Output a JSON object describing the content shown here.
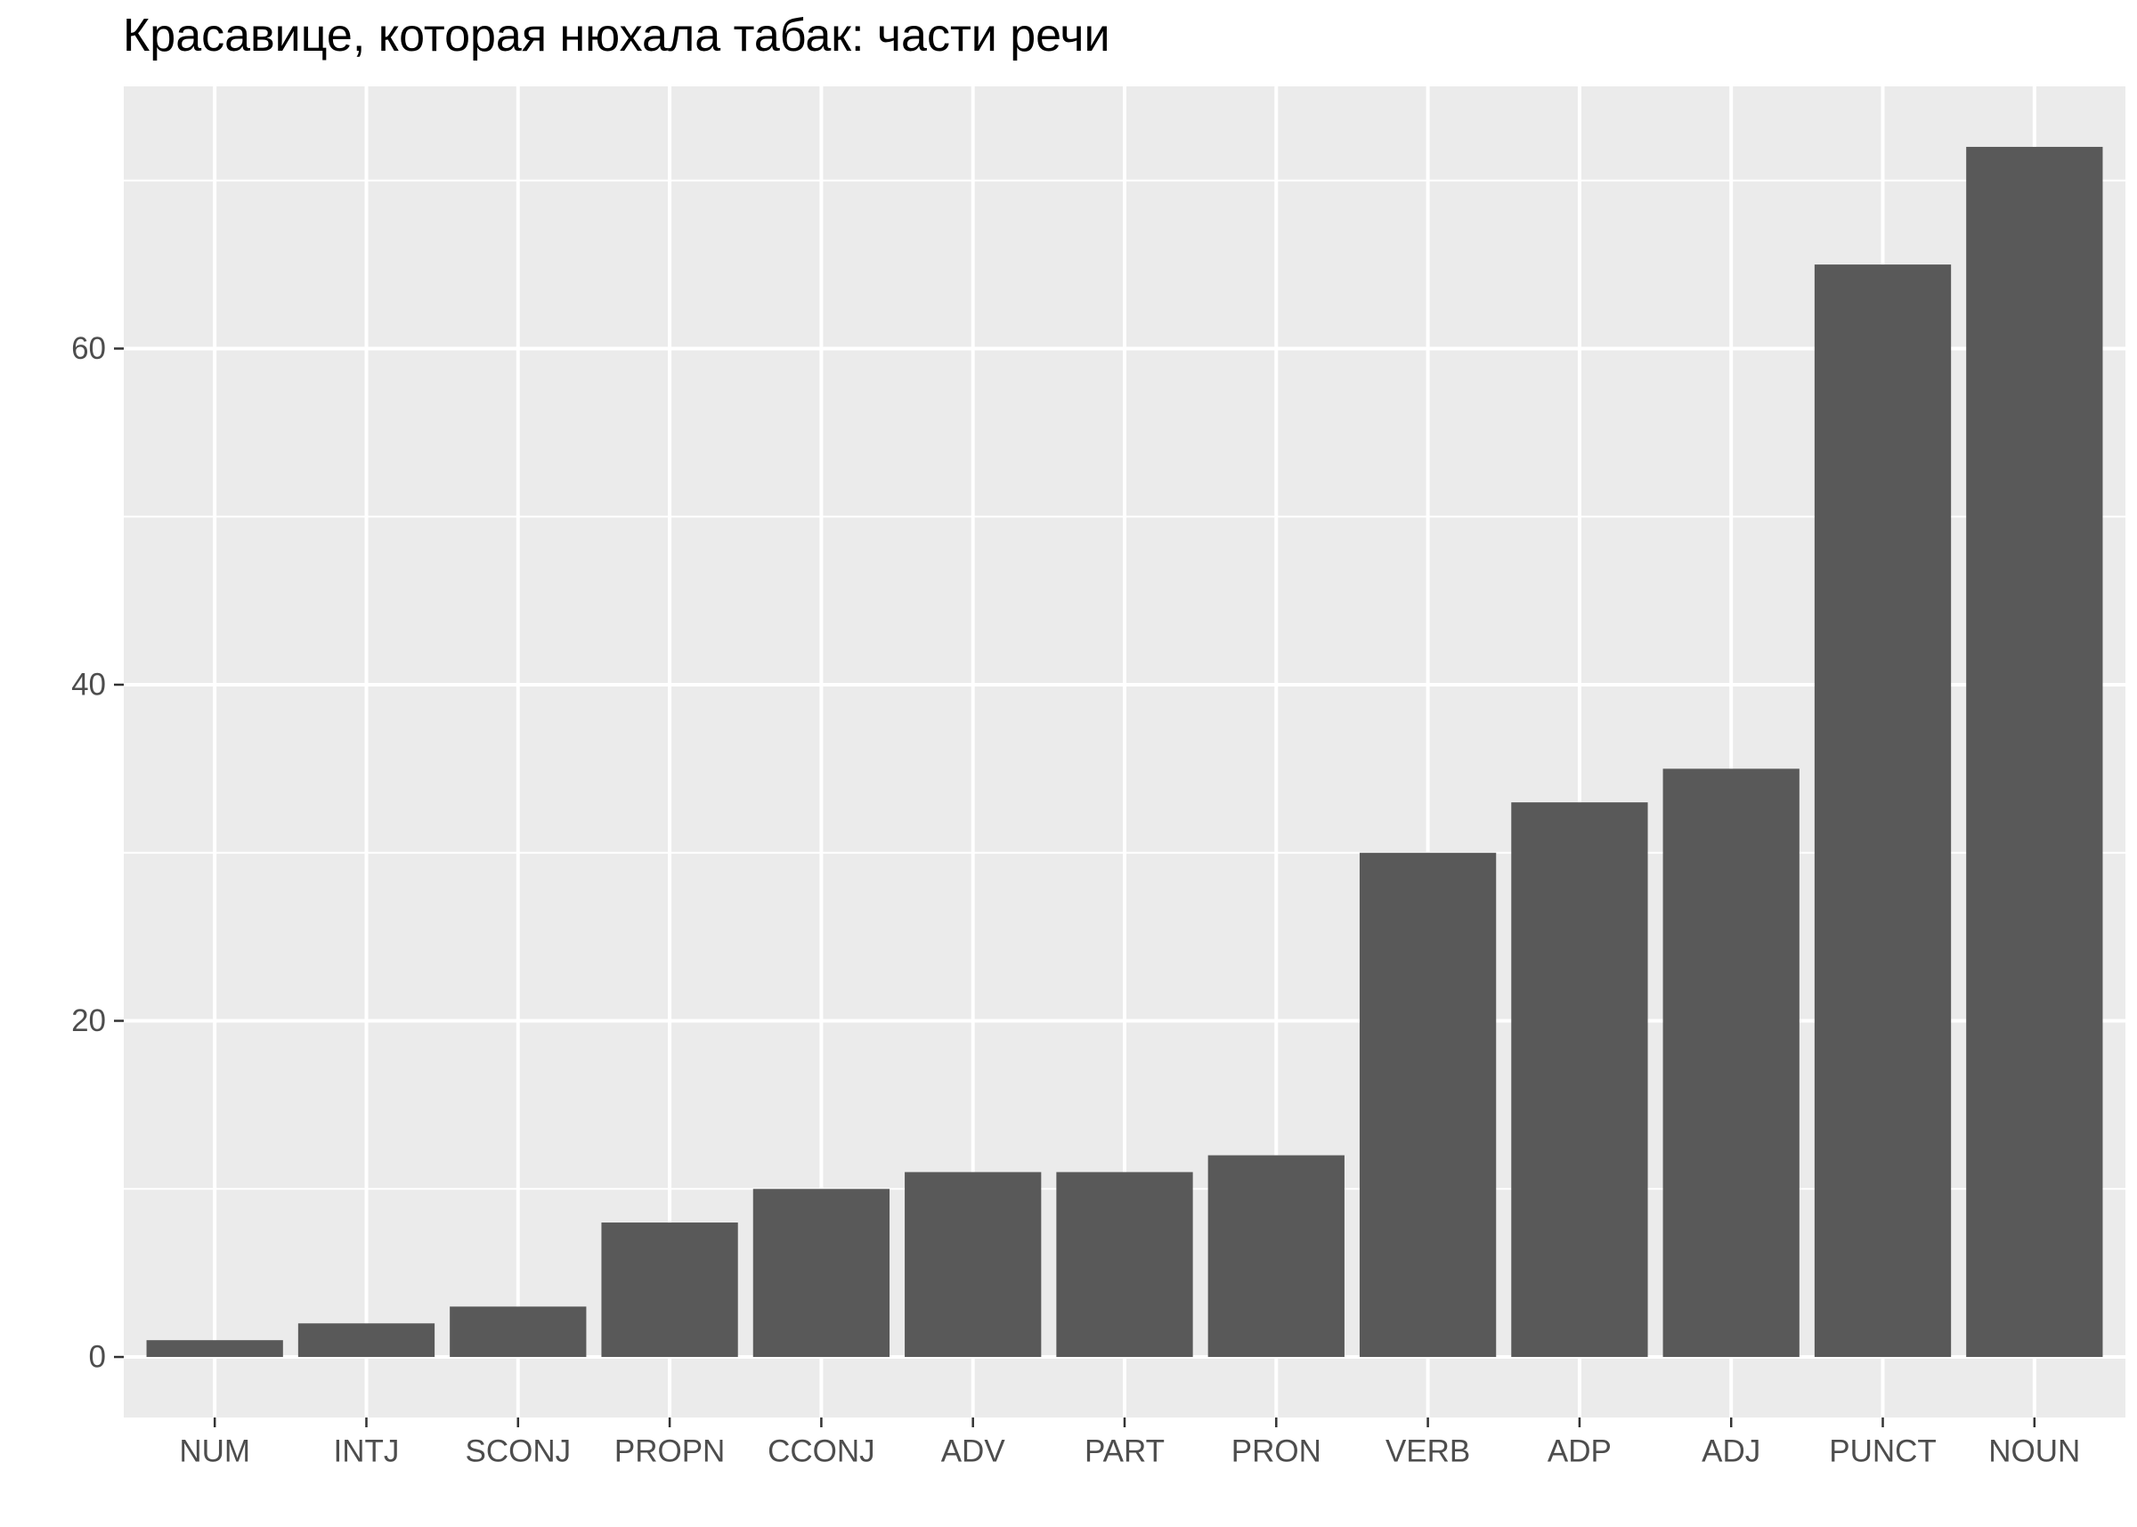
{
  "chart_data": {
    "type": "bar",
    "title": "Красавице, которая нюхала табак: части речи",
    "xlabel": "",
    "ylabel": "",
    "categories": [
      "NUM",
      "INTJ",
      "SCONJ",
      "PROPN",
      "CCONJ",
      "ADV",
      "PART",
      "PRON",
      "VERB",
      "ADP",
      "ADJ",
      "PUNCT",
      "NOUN"
    ],
    "values": [
      1,
      2,
      3,
      8,
      10,
      11,
      11,
      12,
      30,
      33,
      35,
      65,
      72
    ],
    "ylim": [
      -3.6,
      75.6
    ],
    "yticks": [
      0,
      20,
      40,
      60
    ],
    "grid": true,
    "legend": "none",
    "colors": {
      "bar": "#595959",
      "panel": "#ebebeb",
      "grid": "#ffffff",
      "tick_text": "#4d4d4d",
      "tick_mark": "#333333"
    }
  }
}
